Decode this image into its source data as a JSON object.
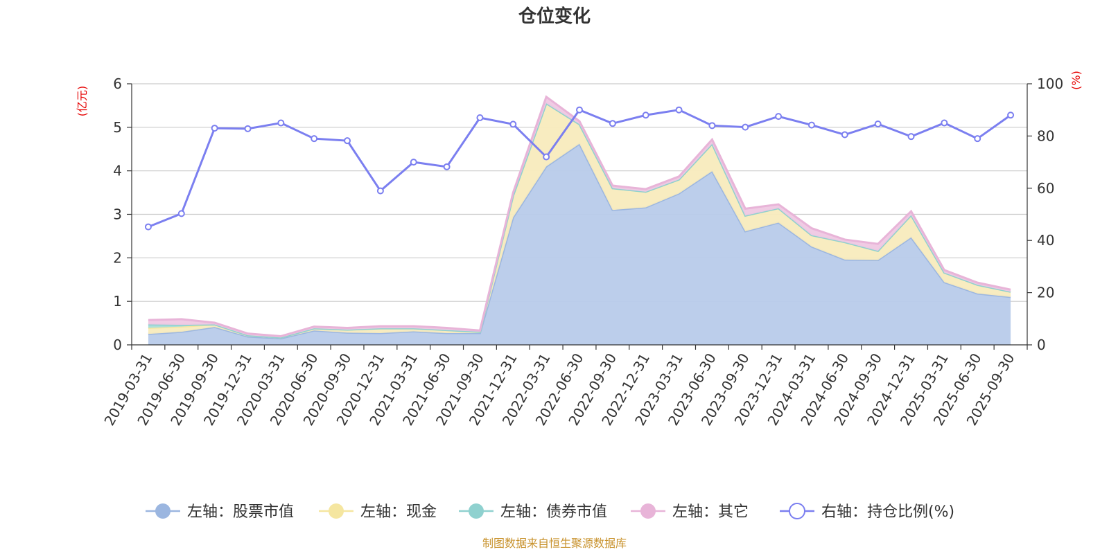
{
  "chart_data": {
    "type": "area",
    "title": "仓位变化",
    "y_left_unit": "(亿元)",
    "y_right_unit": "(%)",
    "y_left_range": [
      0,
      6
    ],
    "y_left_ticks": [
      "0",
      "1",
      "2",
      "3",
      "4",
      "5",
      "6"
    ],
    "y_right_range": [
      0,
      100
    ],
    "y_right_ticks": [
      "0",
      "20",
      "40",
      "60",
      "80",
      "100"
    ],
    "grid": true,
    "legend_position": "bottom",
    "x": [
      "2019-03-31",
      "2019-06-30",
      "2019-09-30",
      "2019-12-31",
      "2020-03-31",
      "2020-06-30",
      "2020-09-30",
      "2020-12-31",
      "2021-03-31",
      "2021-06-30",
      "2021-09-30",
      "2021-12-31",
      "2022-03-31",
      "2022-06-30",
      "2022-09-30",
      "2022-12-31",
      "2023-03-31",
      "2023-06-30",
      "2023-09-30",
      "2023-12-31",
      "2024-03-31",
      "2024-06-30",
      "2024-09-30",
      "2024-12-31",
      "2025-03-31",
      "2025-06-30",
      "2025-09-30"
    ],
    "series": [
      {
        "name": "左轴：股票市值",
        "axis": "left",
        "kind": "stacked-area",
        "color": "#9bb6e0",
        "fill": "#b8cbea",
        "values": [
          0.25,
          0.3,
          0.41,
          0.19,
          0.15,
          0.33,
          0.28,
          0.27,
          0.31,
          0.27,
          0.27,
          2.93,
          4.1,
          4.62,
          3.1,
          3.16,
          3.48,
          3.99,
          2.61,
          2.81,
          2.26,
          1.96,
          1.95,
          2.47,
          1.44,
          1.18,
          1.1
        ]
      },
      {
        "name": "左轴：现金",
        "axis": "left",
        "kind": "stacked-area",
        "color": "#f5e6a0",
        "fill": "#f8ebbd",
        "values": [
          0.14,
          0.12,
          0.06,
          0.03,
          0.02,
          0.05,
          0.07,
          0.11,
          0.07,
          0.07,
          0.03,
          0.5,
          1.45,
          0.45,
          0.5,
          0.36,
          0.32,
          0.63,
          0.36,
          0.33,
          0.26,
          0.4,
          0.21,
          0.51,
          0.22,
          0.2,
          0.12
        ]
      },
      {
        "name": "左轴：债券市值",
        "axis": "left",
        "kind": "stacked-area",
        "color": "#8fd1cf",
        "fill": "#a8ddda",
        "values": [
          0.08,
          0.04,
          0,
          0,
          0,
          0,
          0,
          0,
          0,
          0,
          0,
          0,
          0,
          0,
          0,
          0,
          0,
          0,
          0,
          0,
          0,
          0,
          0,
          0,
          0,
          0,
          0
        ]
      },
      {
        "name": "左轴：其它",
        "axis": "left",
        "kind": "stacked-area",
        "color": "#e8b4d8",
        "fill": "#efc8e3",
        "values": [
          0.1,
          0.13,
          0.04,
          0.04,
          0.03,
          0.04,
          0.04,
          0.05,
          0.05,
          0.05,
          0.03,
          0.07,
          0.15,
          0.07,
          0.06,
          0.06,
          0.07,
          0.1,
          0.16,
          0.09,
          0.16,
          0.06,
          0.16,
          0.09,
          0.06,
          0.05,
          0.05
        ]
      },
      {
        "name": "右轴：持仓比例(%)",
        "axis": "right",
        "kind": "line",
        "color": "#7b7ff0",
        "values": [
          45.2,
          50.3,
          83.0,
          82.8,
          85.0,
          79.0,
          78.2,
          59.0,
          70.0,
          68.2,
          87.0,
          84.5,
          72.0,
          90.0,
          84.8,
          88.0,
          90.0,
          84.0,
          83.4,
          87.5,
          84.2,
          80.5,
          84.6,
          79.8,
          85.0,
          79.0,
          88.0
        ]
      }
    ],
    "source_note": "制图数据来自恒生聚源数据库"
  }
}
